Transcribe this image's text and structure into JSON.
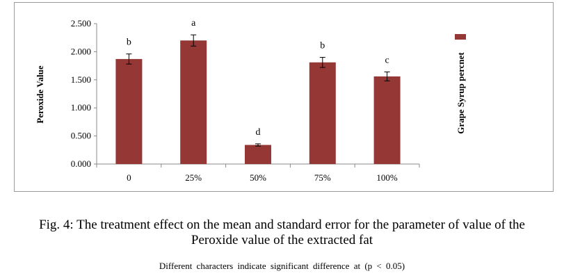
{
  "chart_data": {
    "type": "bar",
    "categories": [
      "0",
      "25%",
      "50%",
      "75%",
      "100%"
    ],
    "series": [
      {
        "name": "Grape Syrup percnet",
        "values": [
          1.87,
          2.2,
          0.34,
          1.81,
          1.56
        ],
        "errors": [
          0.09,
          0.1,
          0.02,
          0.09,
          0.08
        ],
        "letters": [
          "b",
          "a",
          "d",
          "b",
          "c"
        ]
      }
    ],
    "ylabel": "Peroxide Value",
    "xlabel": "",
    "ylim": [
      0,
      2.5
    ],
    "yticks": [
      "0.000",
      "0.500",
      "1.000",
      "1.500",
      "2.000",
      "2.500"
    ],
    "ytick_values": [
      0,
      0.5,
      1,
      1.5,
      2,
      2.5
    ],
    "legend_position": "right",
    "grid": false,
    "bar_color": "#953735"
  },
  "caption": {
    "line1": "Fig. 4: The treatment effect on the mean and standard error for the parameter of value of the",
    "line2": "Peroxide value of the extracted fat"
  },
  "note": "Different characters indicate significant difference at (p < 0.05)"
}
